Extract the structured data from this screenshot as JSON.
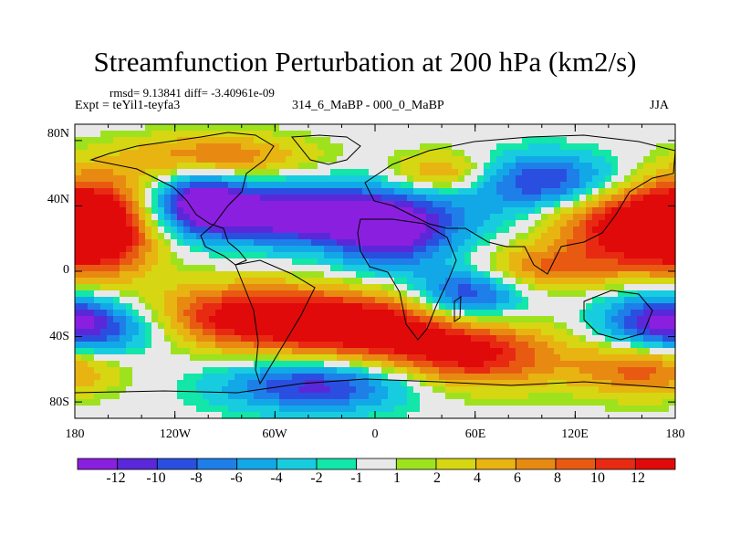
{
  "title": "Streamfunction Perturbation at 200 hPa (km2/s)",
  "stats": "rmsd= 9.13841  diff= -3.40961e-09",
  "experiment": "Expt = teYil1-teyfa3",
  "comparison": "314_6_MaBP - 000_0_MaBP",
  "season": "JJA",
  "y_axis_labels": [
    "80N",
    "40N",
    "0",
    "40S",
    "80S"
  ],
  "x_axis_labels": [
    "180",
    "120W",
    "60W",
    "0",
    "60E",
    "120E",
    "180"
  ],
  "colorbar": {
    "labels": [
      "-12",
      "-10",
      "-8",
      "-6",
      "-4",
      "-2",
      "-1",
      "1",
      "2",
      "4",
      "6",
      "8",
      "10",
      "12"
    ],
    "colors": [
      "#8b1fe0",
      "#5a28d8",
      "#2a4fe0",
      "#1e7fe8",
      "#12a8e8",
      "#18cce0",
      "#12e6a8",
      "#e8e8e8",
      "#9ee21e",
      "#d6d612",
      "#e8b412",
      "#e88a12",
      "#e85a12",
      "#e82a12",
      "#e00a0a"
    ]
  },
  "chart_data": {
    "type": "heatmap",
    "title": "Streamfunction Perturbation at 200 hPa (km2/s)",
    "xlabel": "",
    "ylabel": "",
    "xlim": [
      -180,
      180
    ],
    "ylim": [
      -90,
      90
    ],
    "levels": [
      -12,
      -10,
      -8,
      -6,
      -4,
      -2,
      -1,
      1,
      2,
      4,
      6,
      8,
      10,
      12
    ],
    "features": [
      {
        "lon": -165,
        "lat": 28,
        "amp": 16,
        "slon": 25,
        "slat": 20
      },
      {
        "lon": 155,
        "lat": 28,
        "amp": 15,
        "slon": 35,
        "slat": 18
      },
      {
        "lon": -75,
        "lat": -28,
        "amp": 14,
        "slon": 45,
        "slat": 14
      },
      {
        "lon": 0,
        "lat": -35,
        "amp": 13,
        "slon": 40,
        "slat": 14
      },
      {
        "lon": 60,
        "lat": -52,
        "amp": 12,
        "slon": 35,
        "slat": 14
      },
      {
        "lon": 160,
        "lat": -60,
        "amp": 9,
        "slon": 30,
        "slat": 12
      },
      {
        "lon": -95,
        "lat": 70,
        "amp": 8,
        "slon": 40,
        "slat": 10
      },
      {
        "lon": 40,
        "lat": 60,
        "amp": 7,
        "slon": 20,
        "slat": 9
      },
      {
        "lon": 100,
        "lat": 2,
        "amp": 7,
        "slon": 30,
        "slat": 9
      },
      {
        "lon": -45,
        "lat": 35,
        "amp": -16,
        "slon": 65,
        "slat": 13
      },
      {
        "lon": 10,
        "lat": 18,
        "amp": -9,
        "slon": 25,
        "slat": 14
      },
      {
        "lon": 105,
        "lat": 55,
        "amp": -11,
        "slon": 30,
        "slat": 12
      },
      {
        "lon": 55,
        "lat": -15,
        "amp": -11,
        "slon": 22,
        "slat": 12
      },
      {
        "lon": -35,
        "lat": -70,
        "amp": -11,
        "slon": 40,
        "slat": 11
      },
      {
        "lon": -160,
        "lat": -35,
        "amp": -8,
        "slon": 30,
        "slat": 12
      },
      {
        "lon": 170,
        "lat": -30,
        "amp": -10,
        "slon": 25,
        "slat": 12
      },
      {
        "lon": -105,
        "lat": 45,
        "amp": -9,
        "slon": 18,
        "slat": 12
      }
    ]
  }
}
